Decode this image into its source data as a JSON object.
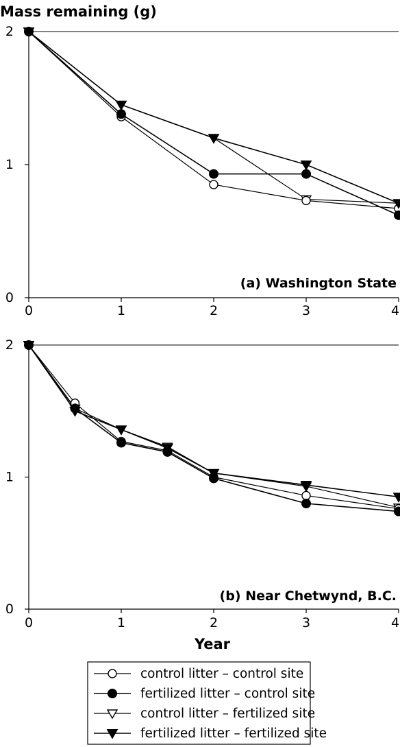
{
  "chart_data": [
    {
      "type": "line",
      "ylabel": "Mass remaining (g)",
      "title": "(a) Washington State",
      "xlim": [
        0,
        4
      ],
      "ylim": [
        0,
        2
      ],
      "xticks": [
        "0",
        "1",
        "2",
        "3",
        "4"
      ],
      "yticks": [
        "0",
        "1",
        "2"
      ],
      "series": [
        {
          "name": "control litter – control site",
          "x": [
            0,
            1,
            2,
            3,
            4
          ],
          "y": [
            2.0,
            1.36,
            0.85,
            0.73,
            0.67
          ]
        },
        {
          "name": "fertilized litter – control site",
          "x": [
            0,
            1,
            2,
            3,
            4
          ],
          "y": [
            2.0,
            1.38,
            0.93,
            0.93,
            0.62
          ]
        },
        {
          "name": "control litter – fertilized site",
          "x": [
            0,
            1,
            2,
            3,
            4
          ],
          "y": [
            2.0,
            1.45,
            1.2,
            0.74,
            0.71
          ]
        },
        {
          "name": "fertilized litter – fertilized site",
          "x": [
            0,
            1,
            2,
            3,
            4
          ],
          "y": [
            2.0,
            1.45,
            1.2,
            1.0,
            0.71
          ]
        }
      ]
    },
    {
      "type": "line",
      "xlabel": "Year",
      "title": "(b) Near Chetwynd, B.C.",
      "xlim": [
        0,
        4
      ],
      "ylim": [
        0,
        2
      ],
      "xticks": [
        "0",
        "1",
        "2",
        "3",
        "4"
      ],
      "yticks": [
        "0",
        "1",
        "2"
      ],
      "series": [
        {
          "name": "control litter – control site",
          "x": [
            0,
            0.5,
            1,
            1.5,
            2,
            3,
            4
          ],
          "y": [
            2.0,
            1.56,
            1.27,
            1.2,
            1.0,
            0.86,
            0.76
          ]
        },
        {
          "name": "fertilized litter – control site",
          "x": [
            0,
            0.5,
            1,
            1.5,
            2,
            3,
            4
          ],
          "y": [
            2.0,
            1.52,
            1.26,
            1.19,
            0.99,
            0.8,
            0.74
          ]
        },
        {
          "name": "control litter – fertilized site",
          "x": [
            0,
            0.5,
            1,
            1.5,
            2,
            3,
            4
          ],
          "y": [
            2.0,
            1.52,
            1.36,
            1.23,
            1.03,
            0.93,
            0.77
          ]
        },
        {
          "name": "fertilized litter – fertilized site",
          "x": [
            0,
            0.5,
            1,
            1.5,
            2,
            3,
            4
          ],
          "y": [
            2.0,
            1.5,
            1.36,
            1.22,
            1.03,
            0.94,
            0.85
          ]
        }
      ]
    }
  ],
  "legend": {
    "items": [
      {
        "label": "control litter – control site",
        "marker": "circle",
        "fill": "open"
      },
      {
        "label": "fertilized litter – control site",
        "marker": "circle",
        "fill": "filled"
      },
      {
        "label": "control litter – fertilized site",
        "marker": "triangle-down",
        "fill": "open"
      },
      {
        "label": "fertilized litter – fertilized site",
        "marker": "triangle-down",
        "fill": "filled"
      }
    ]
  }
}
